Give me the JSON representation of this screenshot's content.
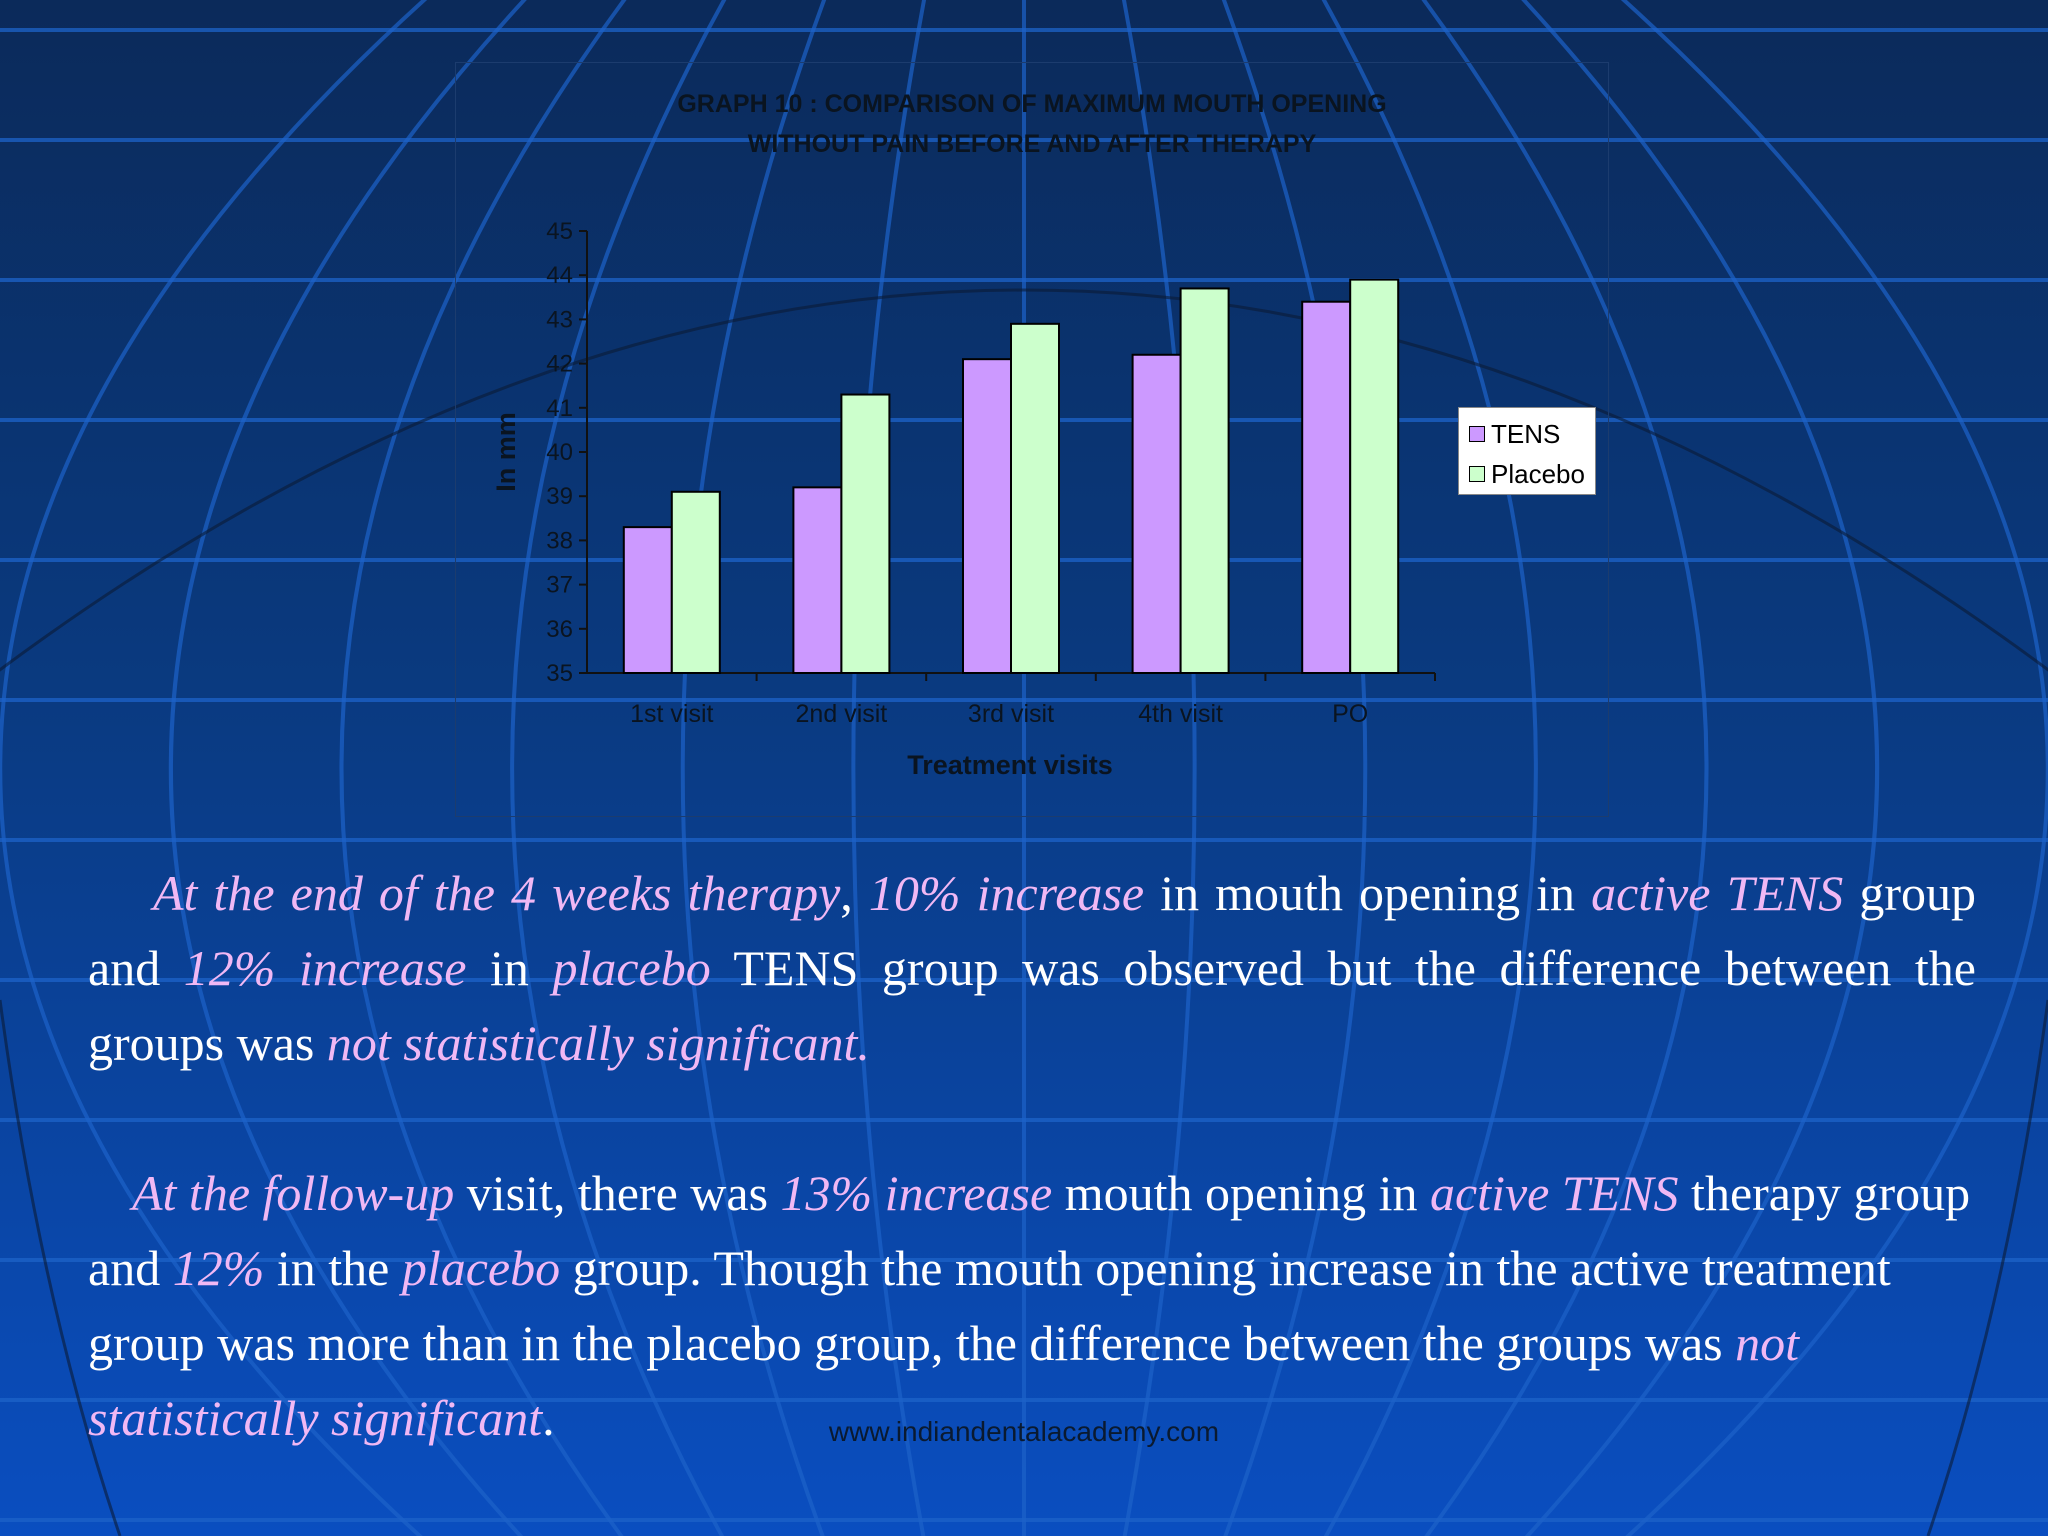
{
  "chart_data": {
    "type": "bar",
    "title_lines": [
      "GRAPH 10 : COMPARISON OF MAXIMUM MOUTH OPENING",
      "WITHOUT PAIN BEFORE AND AFTER THERAPY"
    ],
    "xlabel": "Treatment visits",
    "ylabel": "In mm",
    "categories": [
      "1st visit",
      "2nd visit",
      "3rd visit",
      "4th visit",
      "PO"
    ],
    "ylim": [
      35,
      45
    ],
    "yticks": [
      "35",
      "36",
      "37",
      "38",
      "39",
      "40",
      "41",
      "42",
      "43",
      "44",
      "45"
    ],
    "series": [
      {
        "name": "TENS",
        "color": "#cc99ff",
        "values": [
          38.3,
          39.2,
          42.1,
          42.2,
          43.4
        ]
      },
      {
        "name": "Placebo",
        "color": "#ccffcc",
        "values": [
          39.1,
          41.3,
          42.9,
          43.7,
          43.9
        ]
      }
    ],
    "legend_position": "right",
    "grid": false
  },
  "paragraph1": [
    {
      "t": "At the end of the 4 weeks therapy",
      "em": true
    },
    {
      "t": ", ",
      "em": false
    },
    {
      "t": "10% increase",
      "em": true
    },
    {
      "t": " in mouth opening in ",
      "em": false
    },
    {
      "t": "active TENS",
      "em": true
    },
    {
      "t": " group and ",
      "em": false
    },
    {
      "t": "12% increase",
      "em": true
    },
    {
      "t": " in ",
      "em": false
    },
    {
      "t": "placebo",
      "em": true
    },
    {
      "t": " TENS group was observed but the difference between the groups was ",
      "em": false
    },
    {
      "t": "not statistically significant.",
      "em": true
    }
  ],
  "paragraph2": [
    {
      "t": "At the follow-up",
      "em": true
    },
    {
      "t": " visit, there was ",
      "em": false
    },
    {
      "t": "13% increase",
      "em": true
    },
    {
      "t": " mouth opening in ",
      "em": false
    },
    {
      "t": "active TENS",
      "em": true
    },
    {
      "t": " therapy group and ",
      "em": false
    },
    {
      "t": "12%",
      "em": true
    },
    {
      "t": " in the ",
      "em": false
    },
    {
      "t": "placebo",
      "em": true
    },
    {
      "t": " group. Though the mouth opening increase in the active treatment group was more than in the placebo group, the difference between the groups was ",
      "em": false
    },
    {
      "t": "not statistically significant",
      "em": true
    },
    {
      "t": ".",
      "em": false
    }
  ],
  "watermark": "www.indiandentalacademy.com",
  "colors": {
    "emphasis_text": "#f0b8f4",
    "body_text": "#ffffff"
  }
}
